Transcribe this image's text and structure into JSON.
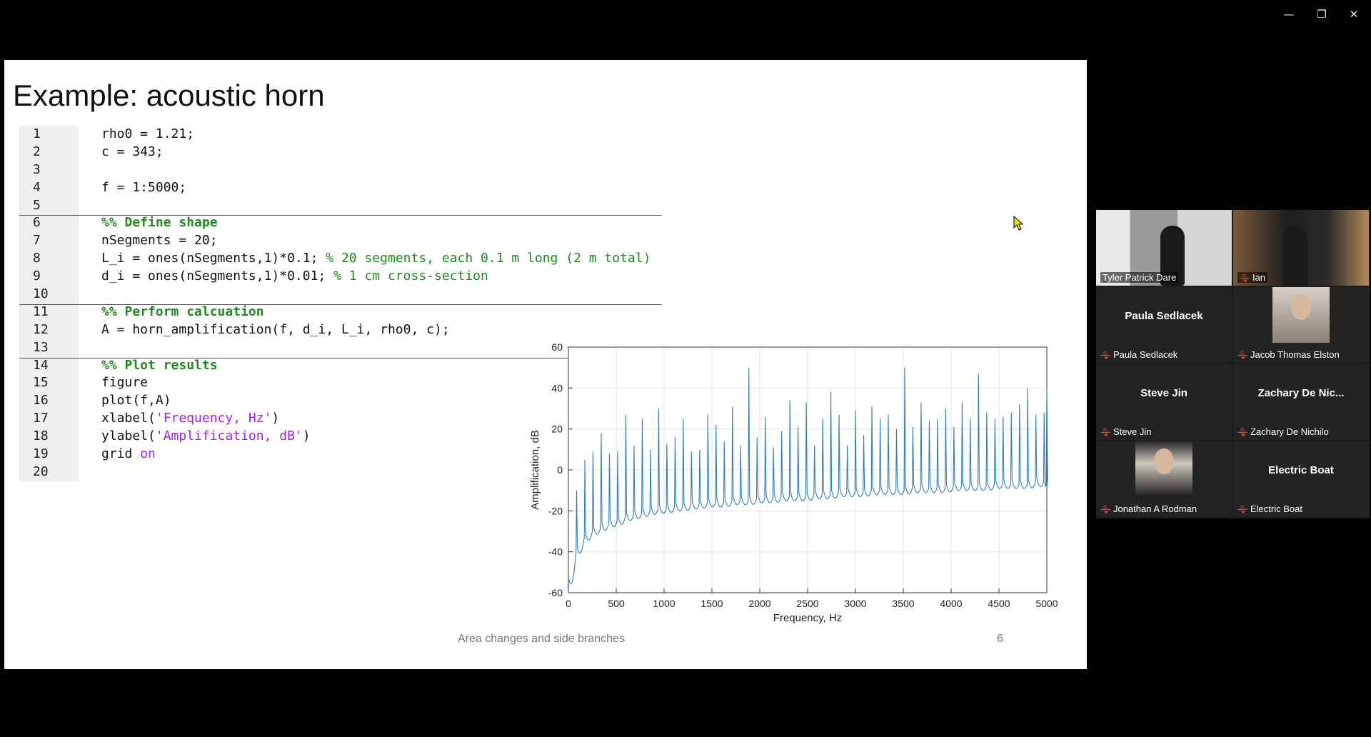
{
  "window_controls": {
    "minimize": "—",
    "maximize": "❐",
    "close": "✕"
  },
  "slide": {
    "title": "Example: acoustic horn",
    "code": [
      {
        "n": "1",
        "parts": [
          {
            "t": "rho0 = 1.21;",
            "c": "txt"
          }
        ]
      },
      {
        "n": "2",
        "parts": [
          {
            "t": "c = 343;",
            "c": "txt"
          }
        ]
      },
      {
        "n": "3",
        "parts": []
      },
      {
        "n": "4",
        "parts": [
          {
            "t": "f = 1:5000;",
            "c": "txt"
          }
        ]
      },
      {
        "n": "5",
        "parts": []
      },
      {
        "n": "6",
        "parts": [
          {
            "t": "%% Define shape",
            "c": "cmb"
          }
        ]
      },
      {
        "n": "7",
        "parts": [
          {
            "t": "nSegments = 20;",
            "c": "txt"
          }
        ]
      },
      {
        "n": "8",
        "parts": [
          {
            "t": "L_i = ones(nSegments,1)*0.1; ",
            "c": "txt"
          },
          {
            "t": "% 20 segments, each 0.1 m long (2 m total)",
            "c": "cm"
          }
        ]
      },
      {
        "n": "9",
        "parts": [
          {
            "t": "d_i = ones(nSegments,1)*0.01; ",
            "c": "txt"
          },
          {
            "t": "% 1 cm cross-section",
            "c": "cm"
          }
        ]
      },
      {
        "n": "10",
        "parts": []
      },
      {
        "n": "11",
        "parts": [
          {
            "t": "%% Perform calcuation",
            "c": "cmb"
          }
        ]
      },
      {
        "n": "12",
        "parts": [
          {
            "t": "A = horn_amplification(f, d_i, L_i, rho0, c);",
            "c": "txt"
          }
        ]
      },
      {
        "n": "13",
        "parts": []
      },
      {
        "n": "14",
        "parts": [
          {
            "t": "%% Plot results",
            "c": "cmb"
          }
        ]
      },
      {
        "n": "15",
        "parts": [
          {
            "t": "figure",
            "c": "txt"
          }
        ]
      },
      {
        "n": "16",
        "parts": [
          {
            "t": "plot(f,A)",
            "c": "txt"
          }
        ]
      },
      {
        "n": "17",
        "parts": [
          {
            "t": "xlabel(",
            "c": "txt"
          },
          {
            "t": "'Frequency, Hz'",
            "c": "st"
          },
          {
            "t": ")",
            "c": "txt"
          }
        ]
      },
      {
        "n": "18",
        "parts": [
          {
            "t": "ylabel(",
            "c": "txt"
          },
          {
            "t": "'Amplification, dB'",
            "c": "st"
          },
          {
            "t": ")",
            "c": "txt"
          }
        ]
      },
      {
        "n": "19",
        "parts": [
          {
            "t": "grid ",
            "c": "txt"
          },
          {
            "t": "on",
            "c": "st"
          }
        ]
      },
      {
        "n": "20",
        "parts": []
      }
    ],
    "footer_text": "Area changes and side branches",
    "page_number": "6"
  },
  "chart_data": {
    "type": "line",
    "xlabel": "Frequency, Hz",
    "ylabel": "Amplification, dB",
    "xlim": [
      0,
      5000
    ],
    "ylim": [
      -60,
      60
    ],
    "xticks": [
      0,
      500,
      1000,
      1500,
      2000,
      2500,
      3000,
      3500,
      4000,
      4500,
      5000
    ],
    "yticks": [
      -60,
      -40,
      -20,
      0,
      20,
      40,
      60
    ],
    "grid": true,
    "line_color": "#2f7dbd",
    "series": [
      {
        "values_note": "",
        "x": [
          1,
          86,
          172,
          257,
          343,
          429,
          515,
          600,
          686,
          772,
          858,
          943,
          1029,
          1115,
          1200,
          1286,
          1372,
          1458,
          1543,
          1629,
          1715,
          1800,
          1886,
          1972,
          2058,
          2143,
          2229,
          2315,
          2400,
          2486,
          2572,
          2658,
          2743,
          2829,
          2915,
          3000,
          3086,
          3172,
          3258,
          3343,
          3429,
          3515,
          3600,
          3686,
          3772,
          3858,
          3943,
          4029,
          4115,
          4200,
          4286,
          4372,
          4458,
          4543,
          4629,
          4715,
          4800,
          4886,
          4972,
          5000
        ],
        "peaks": [
          -55,
          -10,
          5,
          9,
          18,
          8,
          9,
          27,
          12,
          25,
          10,
          30,
          13,
          16,
          25,
          9,
          10,
          27,
          22,
          14,
          31,
          12,
          50,
          16,
          26,
          11,
          19,
          34,
          21,
          33,
          12,
          25,
          38,
          27,
          12,
          29,
          17,
          31,
          25,
          27,
          20,
          50,
          21,
          33,
          24,
          25,
          30,
          21,
          33,
          25,
          47,
          28,
          25,
          26,
          28,
          32,
          40,
          27,
          28,
          40
        ],
        "troughs": [
          -60,
          -44,
          -37,
          -34,
          -32,
          -30,
          -29,
          -27,
          -26,
          -25,
          -24,
          -23,
          -23,
          -22,
          -22,
          -21,
          -21,
          -20,
          -20,
          -20,
          -19,
          -19,
          -19,
          -18,
          -18,
          -18,
          -17,
          -17,
          -17,
          -17,
          -16,
          -16,
          -16,
          -15,
          -15,
          -15,
          -15,
          -14,
          -14,
          -14,
          -14,
          -14,
          -13,
          -13,
          -13,
          -13,
          -13,
          -12,
          -12,
          -12,
          -12,
          -12,
          -11,
          -11,
          -11,
          -11,
          -11,
          -10,
          -10,
          -10
        ]
      }
    ]
  },
  "participants": [
    {
      "name": "Tyler Patrick Dare",
      "muted": false,
      "video": true,
      "active": true,
      "big_name": ""
    },
    {
      "name": "Ian",
      "muted": true,
      "video": true,
      "active": false,
      "big_name": ""
    },
    {
      "name": "Paula Sedlacek",
      "muted": true,
      "video": false,
      "active": false,
      "big_name": "Paula Sedlacek"
    },
    {
      "name": "Jacob Thomas Elston",
      "muted": true,
      "video": false,
      "photo": true,
      "active": false,
      "big_name": ""
    },
    {
      "name": "Steve Jin",
      "muted": true,
      "video": false,
      "active": false,
      "big_name": "Steve Jin"
    },
    {
      "name": "Zachary De Nichilo",
      "muted": true,
      "video": false,
      "active": false,
      "big_name": "Zachary De Nic..."
    },
    {
      "name": "Jonathan A Rodman",
      "muted": true,
      "video": false,
      "photo": true,
      "active": false,
      "big_name": ""
    },
    {
      "name": "Electric Boat",
      "muted": true,
      "video": false,
      "active": false,
      "big_name": "Electric Boat"
    }
  ]
}
